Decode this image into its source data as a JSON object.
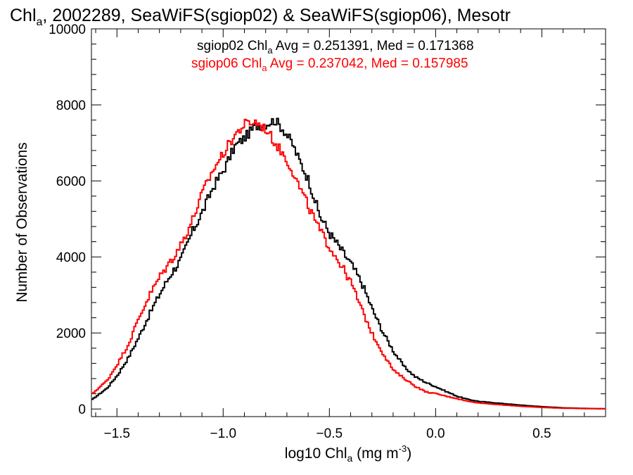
{
  "chart_data": {
    "type": "line",
    "title": {
      "prefix": "Chl",
      "sub": "a",
      "rest": ", 2002289, SeaWiFS(sgiop02) & SeaWiFS(sgiop06), Mesotr"
    },
    "xlabel": {
      "prefix": "log10 Chl",
      "sub": "a",
      "rest": " (mg m",
      "sup": "-3",
      "end": ")"
    },
    "ylabel": "Number of Observations",
    "xlim": [
      -1.62,
      0.8
    ],
    "ylim": [
      -200,
      10000
    ],
    "xticks": [
      {
        "value": -1.5,
        "label": "−1.5"
      },
      {
        "value": -1.0,
        "label": "−1.0"
      },
      {
        "value": -0.5,
        "label": "−0.5"
      },
      {
        "value": 0.0,
        "label": "0.0"
      },
      {
        "value": 0.5,
        "label": "0.5"
      }
    ],
    "yticks": [
      {
        "value": 0,
        "label": "0"
      },
      {
        "value": 2000,
        "label": "2000"
      },
      {
        "value": 4000,
        "label": "4000"
      },
      {
        "value": 6000,
        "label": "6000"
      },
      {
        "value": 8000,
        "label": "8000"
      },
      {
        "value": 10000,
        "label": "10000"
      }
    ],
    "grid": false,
    "legend_position": "top-right",
    "series": [
      {
        "name": "sgiop02",
        "color": "#000000",
        "stats_label": {
          "prefix": "sgiop02 Chl",
          "sub": "a",
          "rest": " Avg = 0.251391, Med = 0.171368"
        },
        "x": [
          -1.62,
          -1.55,
          -1.5,
          -1.45,
          -1.4,
          -1.35,
          -1.3,
          -1.25,
          -1.2,
          -1.15,
          -1.1,
          -1.05,
          -1.0,
          -0.95,
          -0.9,
          -0.85,
          -0.8,
          -0.76,
          -0.72,
          -0.68,
          -0.65,
          -0.6,
          -0.55,
          -0.5,
          -0.45,
          -0.4,
          -0.35,
          -0.3,
          -0.25,
          -0.2,
          -0.15,
          -0.1,
          -0.05,
          0.0,
          0.05,
          0.1,
          0.15,
          0.2,
          0.3,
          0.4,
          0.5,
          0.6,
          0.7,
          0.8
        ],
        "y": [
          250,
          550,
          900,
          1350,
          1900,
          2500,
          3050,
          3550,
          3950,
          4650,
          5200,
          5850,
          6300,
          6900,
          7150,
          7450,
          7500,
          7600,
          7350,
          7000,
          6600,
          6000,
          5100,
          4600,
          4200,
          3800,
          3300,
          2600,
          2000,
          1500,
          1100,
          850,
          700,
          580,
          450,
          330,
          250,
          200,
          150,
          100,
          60,
          30,
          15,
          5
        ]
      },
      {
        "name": "sgiop06",
        "color": "#ff0000",
        "stats_label": {
          "prefix": "sgiop06 Chl",
          "sub": "a",
          "rest": " Avg = 0.237042, Med = 0.157985"
        },
        "x": [
          -1.62,
          -1.55,
          -1.5,
          -1.45,
          -1.4,
          -1.35,
          -1.3,
          -1.25,
          -1.2,
          -1.15,
          -1.1,
          -1.05,
          -1.0,
          -0.95,
          -0.9,
          -0.85,
          -0.8,
          -0.76,
          -0.72,
          -0.68,
          -0.65,
          -0.6,
          -0.55,
          -0.5,
          -0.45,
          -0.4,
          -0.35,
          -0.3,
          -0.25,
          -0.2,
          -0.15,
          -0.1,
          -0.05,
          0.0,
          0.05,
          0.1,
          0.15,
          0.2,
          0.3,
          0.4,
          0.5,
          0.6,
          0.7,
          0.8
        ],
        "y": [
          400,
          750,
          1200,
          1700,
          2400,
          3000,
          3500,
          3900,
          4350,
          4950,
          5700,
          6300,
          6750,
          7200,
          7500,
          7550,
          7350,
          7000,
          6700,
          6300,
          5900,
          5300,
          4700,
          4250,
          3800,
          3300,
          2600,
          1950,
          1450,
          1000,
          800,
          600,
          450,
          400,
          330,
          270,
          200,
          160,
          110,
          70,
          40,
          20,
          10,
          5
        ]
      }
    ]
  }
}
